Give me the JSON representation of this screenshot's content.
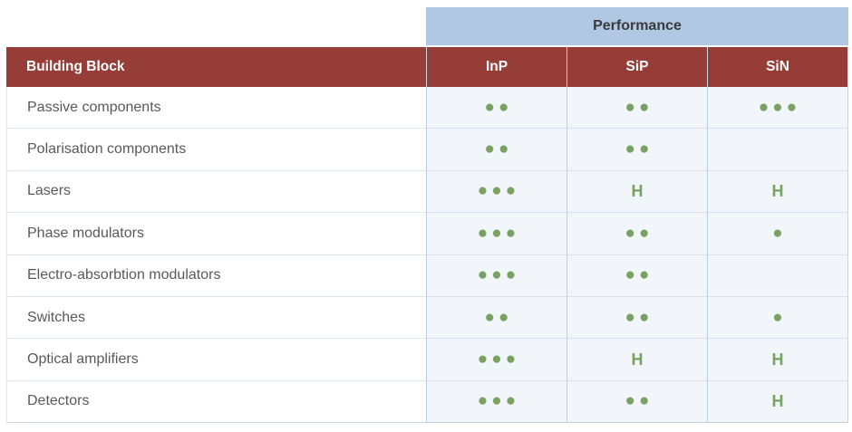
{
  "chart_data": {
    "type": "table",
    "title": "Performance",
    "row_header": "Building Block",
    "columns": [
      "InP",
      "SiP",
      "SiN"
    ],
    "rows": [
      {
        "label": "Passive components",
        "cells": [
          "●●",
          "●●",
          "●●●"
        ]
      },
      {
        "label": "Polarisation components",
        "cells": [
          "●●",
          "●●",
          ""
        ]
      },
      {
        "label": "Lasers",
        "cells": [
          "●●●",
          "H",
          "H"
        ]
      },
      {
        "label": "Phase modulators",
        "cells": [
          "●●●",
          "●●",
          "●"
        ]
      },
      {
        "label": "Electro-absorbtion modulators",
        "cells": [
          "●●●",
          "●●",
          ""
        ]
      },
      {
        "label": "Switches",
        "cells": [
          "●●",
          "●●",
          "●"
        ]
      },
      {
        "label": "Optical amplifiers",
        "cells": [
          "●●●",
          "H",
          "H"
        ]
      },
      {
        "label": "Detectors",
        "cells": [
          "●●●",
          "●●",
          "H"
        ]
      }
    ],
    "layout": {
      "legend": "none",
      "grid": "on",
      "title_position": "top-spanning-value-columns"
    },
    "colors": {
      "header_red": "#963d38",
      "performance_blue": "#b1c8e4",
      "dot_green": "#77a263",
      "label_text": "#595959",
      "header_text": "#ffffff",
      "performance_text": "#3a3a3a",
      "cell_background": "#f2f6fa"
    }
  }
}
